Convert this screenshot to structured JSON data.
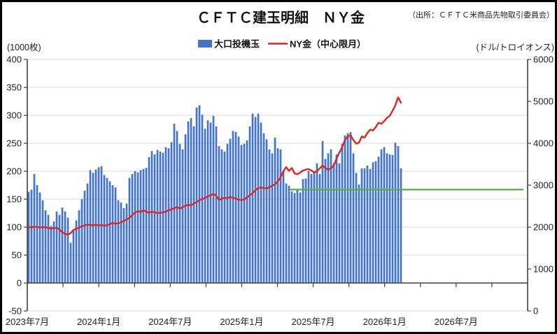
{
  "header": {
    "title": "ＣＦＴＣ建玉明細　ＮＹ金",
    "source_note": "（出所：ＣＦＴＣ米商品先物取引委員会）"
  },
  "axes": {
    "left_unit": "(1000枚)",
    "right_unit": "(ドル/トロイオンス)",
    "left_ticks": [
      400,
      350,
      300,
      250,
      200,
      150,
      100,
      50,
      0,
      -50
    ],
    "right_ticks": [
      6000,
      5000,
      4000,
      3000,
      2000,
      1000,
      0
    ]
  },
  "legend": [
    {
      "label": "大口投機玉",
      "type": "bar",
      "color": "#4474c4"
    },
    {
      "label": "NY金（中心限月）",
      "type": "line",
      "color": "#e02424"
    }
  ],
  "colors": {
    "bar": "#4474c4",
    "price_line": "#e02424",
    "reference_line": "#57ab47",
    "grid": "#d9d9d9",
    "axis": "#404040"
  },
  "chart_data": {
    "type": "bar",
    "title": "ＣＦＴＣ建玉明細　ＮＹ金",
    "x_frequency": "weekly",
    "x_start": "2023-07",
    "x_axis_end": "2027-01",
    "x_tick_interval": "3 months",
    "x_label_interval": "6 months",
    "x_axis_tick_labels": [
      "2023年7月",
      "2024年1月",
      "2024年7月",
      "2025年1月",
      "2025年7月",
      "2026年1月",
      "2026年7月"
    ],
    "left_axis": {
      "unit": "(1000枚)",
      "min": -50,
      "max": 400,
      "tick_step": 50
    },
    "right_axis": {
      "unit": "(ドル/トロイオンス)",
      "min": 0,
      "max": 6000,
      "tick_step": 1000
    },
    "grid": "horizontal, every 50 units of left axis",
    "legend_position": "top-center",
    "series": [
      {
        "name": "大口投機玉",
        "type": "bar",
        "axis": "left",
        "color": "#4474c4",
        "values": [
          163,
          167,
          195,
          175,
          162,
          148,
          130,
          122,
          102,
          110,
          128,
          122,
          135,
          128,
          117,
          72,
          95,
          112,
          130,
          150,
          165,
          178,
          202,
          197,
          203,
          207,
          209,
          193,
          188,
          182,
          175,
          171,
          148,
          144,
          134,
          142,
          188,
          195,
          200,
          198,
          202,
          204,
          206,
          225,
          236,
          230,
          238,
          235,
          233,
          243,
          241,
          252,
          285,
          272,
          249,
          239,
          266,
          289,
          295,
          280,
          314,
          318,
          301,
          276,
          291,
          287,
          299,
          280,
          245,
          239,
          235,
          249,
          258,
          272,
          270,
          262,
          247,
          249,
          255,
          280,
          303,
          297,
          303,
          287,
          268,
          257,
          239,
          232,
          260,
          241,
          239,
          201,
          178,
          174,
          164,
          161,
          167,
          162,
          186,
          187,
          200,
          195,
          200,
          214,
          195,
          254,
          222,
          232,
          239,
          214,
          230,
          214,
          249,
          264,
          268,
          270,
          232,
          197,
          176,
          205,
          205,
          210,
          204,
          216,
          218,
          226,
          239,
          243,
          232,
          230,
          229,
          251,
          245,
          205
        ]
      },
      {
        "name": "NY金（中心限月）",
        "type": "line",
        "axis": "right",
        "color": "#e02424",
        "values": [
          2000,
          1995,
          2010,
          2000,
          1990,
          2000,
          1995,
          1980,
          1965,
          1975,
          1985,
          1940,
          1880,
          1840,
          1820,
          1855,
          1935,
          1955,
          1990,
          2020,
          2040,
          2060,
          2050,
          2045,
          2055,
          2040,
          2050,
          2035,
          2045,
          2070,
          2100,
          2080,
          2090,
          2110,
          2150,
          2180,
          2220,
          2290,
          2350,
          2380,
          2360,
          2400,
          2370,
          2340,
          2370,
          2350,
          2335,
          2345,
          2350,
          2370,
          2400,
          2420,
          2450,
          2480,
          2440,
          2475,
          2510,
          2530,
          2520,
          2560,
          2600,
          2640,
          2670,
          2700,
          2730,
          2760,
          2790,
          2745,
          2650,
          2680,
          2700,
          2690,
          2720,
          2700,
          2680,
          2655,
          2645,
          2660,
          2710,
          2760,
          2810,
          2880,
          2930,
          2940,
          2930,
          2925,
          2945,
          2990,
          3020,
          3090,
          3190,
          3330,
          3430,
          3340,
          3410,
          3280,
          3260,
          3300,
          3350,
          3370,
          3385,
          3350,
          3300,
          3335,
          3400,
          3470,
          3405,
          3375,
          3400,
          3475,
          3635,
          3775,
          3910,
          4075,
          4160,
          4190,
          4075,
          3990,
          4015,
          4160,
          4135,
          4245,
          4325,
          4305,
          4385,
          4490,
          4465,
          4525,
          4605,
          4655,
          4775,
          4905,
          5095,
          4965
        ]
      },
      {
        "name": "reference-level",
        "type": "hline",
        "axis": "left",
        "color": "#57ab47",
        "value": 167,
        "start_index": 93,
        "extends_to_right_edge": true
      }
    ]
  }
}
